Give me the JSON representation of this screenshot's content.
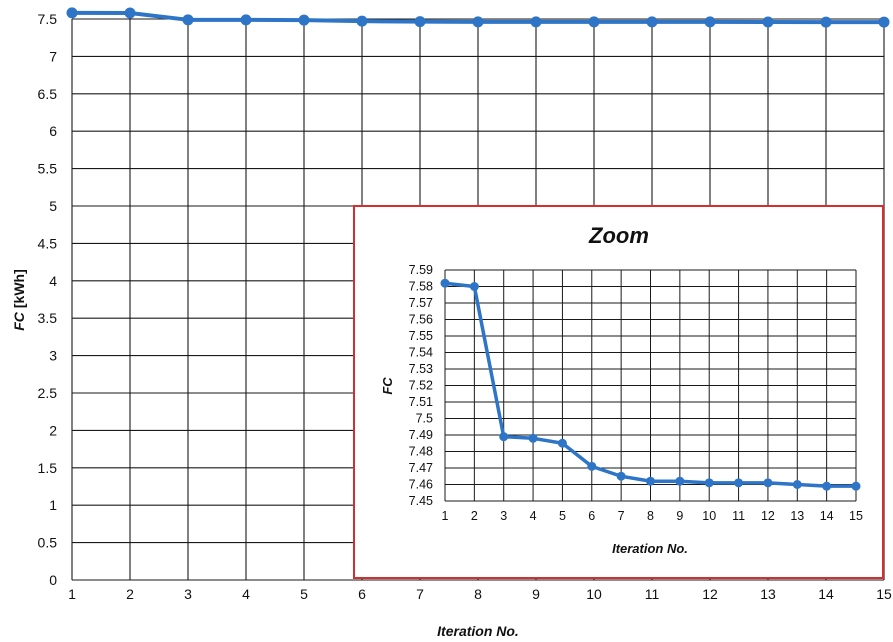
{
  "chart_data": [
    {
      "type": "line",
      "x": [
        1,
        2,
        3,
        4,
        5,
        6,
        7,
        8,
        9,
        10,
        11,
        12,
        13,
        14,
        15
      ],
      "series": [
        {
          "values": [
            7.582,
            7.58,
            7.489,
            7.488,
            7.485,
            7.471,
            7.465,
            7.462,
            7.462,
            7.461,
            7.461,
            7.461,
            7.46,
            7.459,
            7.459
          ]
        }
      ],
      "xlabel": "Iteration No.",
      "ylabel_prefix": "FC",
      "ylabel_unit": "[kWh]",
      "xlim": [
        1,
        15
      ],
      "ylim": [
        0,
        7.5
      ],
      "yticks": [
        "0",
        "0.5",
        "1",
        "1.5",
        "2",
        "2.5",
        "3",
        "3.5",
        "4",
        "4.5",
        "5",
        "5.5",
        "6",
        "6.5",
        "7",
        "7.5"
      ],
      "xticks": [
        "1",
        "2",
        "3",
        "4",
        "5",
        "6",
        "7",
        "8",
        "9",
        "10",
        "11",
        "12",
        "13",
        "14",
        "15"
      ],
      "grid": true,
      "line_color": "#2e75c8"
    },
    {
      "type": "line",
      "title": "Zoom",
      "x": [
        1,
        2,
        3,
        4,
        5,
        6,
        7,
        8,
        9,
        10,
        11,
        12,
        13,
        14,
        15
      ],
      "series": [
        {
          "values": [
            7.582,
            7.58,
            7.489,
            7.488,
            7.485,
            7.471,
            7.465,
            7.462,
            7.462,
            7.461,
            7.461,
            7.461,
            7.46,
            7.459,
            7.459
          ]
        }
      ],
      "xlabel": "Iteration No.",
      "ylabel": "FC",
      "xlim": [
        1,
        15
      ],
      "ylim": [
        7.45,
        7.59
      ],
      "yticks": [
        "7.45",
        "7.46",
        "7.47",
        "7.48",
        "7.49",
        "7.5",
        "7.51",
        "7.52",
        "7.53",
        "7.54",
        "7.55",
        "7.56",
        "7.57",
        "7.58",
        "7.59"
      ],
      "xticks": [
        "1",
        "2",
        "3",
        "4",
        "5",
        "6",
        "7",
        "8",
        "9",
        "10",
        "11",
        "12",
        "13",
        "14",
        "15"
      ],
      "grid": true,
      "line_color": "#2e75c8",
      "border_color": "#d32f2f"
    }
  ]
}
